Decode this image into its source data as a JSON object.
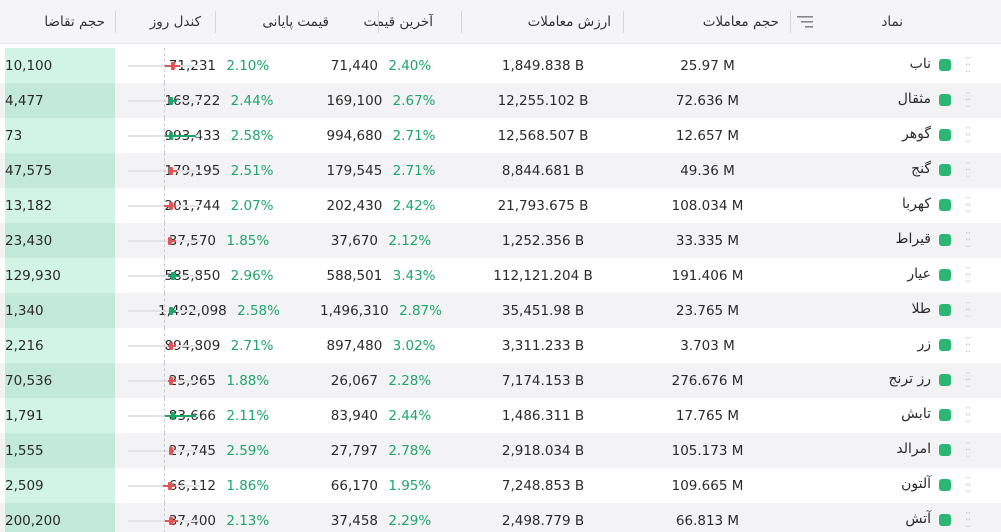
{
  "colors": {
    "positive": "#1fa56c",
    "candle_red": "#e05555",
    "candle_green": "#1fa56c",
    "symbol_square": "#2bb673",
    "bid_light": "#d2f4e6",
    "bid_dark": "#c3ead9"
  },
  "icons": {
    "sort": "sort-lines-icon",
    "grip": "drag-grip-icon"
  },
  "header": {
    "symbol": "نماد",
    "volume": "حجم معاملات",
    "value": "ارزش معاملات",
    "last_price": "آخرین قیمت",
    "close_price": "قیمت پایانی",
    "candle": "کندل روز",
    "bid_volume": "حجم تقاضا"
  },
  "rows": [
    {
      "symbol": "ناب",
      "volume": "25.97 M",
      "value": "1,849.838 B",
      "last_price": "71,440",
      "last_pct": "2.40%",
      "close_price": "71,231",
      "close_pct": "2.10%",
      "bid_volume": "10,100",
      "candle": {
        "color": "red",
        "body_pos": 0.62,
        "wick_low": 0.52,
        "wick_high": 0.72
      }
    },
    {
      "symbol": "مثقال",
      "volume": "72.636 M",
      "value": "12,255.102 B",
      "last_price": "169,100",
      "last_pct": "2.67%",
      "close_price": "168,722",
      "close_pct": "2.44%",
      "bid_volume": "4,477",
      "candle": {
        "color": "green",
        "body_pos": 0.6,
        "wick_low": 0.55,
        "wick_high": 0.68
      }
    },
    {
      "symbol": "گوهر",
      "volume": "12.657 M",
      "value": "12,568.507 B",
      "last_price": "994,680",
      "last_pct": "2.71%",
      "close_price": "993,433",
      "close_pct": "2.58%",
      "bid_volume": "73",
      "candle": {
        "color": "green",
        "body_pos": 0.6,
        "wick_low": 0.52,
        "wick_high": 0.95
      }
    },
    {
      "symbol": "گنج",
      "volume": "49.36 M",
      "value": "8,844.681 B",
      "last_price": "179,545",
      "last_pct": "2.71%",
      "close_price": "179,195",
      "close_pct": "2.51%",
      "bid_volume": "47,575",
      "candle": {
        "color": "red",
        "body_pos": 0.6,
        "wick_low": 0.55,
        "wick_high": 0.68
      }
    },
    {
      "symbol": "کهربا",
      "volume": "108.034 M",
      "value": "21,793.675 B",
      "last_price": "202,430",
      "last_pct": "2.42%",
      "close_price": "201,744",
      "close_pct": "2.07%",
      "bid_volume": "13,182",
      "candle": {
        "color": "red",
        "body_pos": 0.6,
        "wick_low": 0.5,
        "wick_high": 0.66
      }
    },
    {
      "symbol": "قیراط",
      "volume": "33.335 M",
      "value": "1,252.356 B",
      "last_price": "37,670",
      "last_pct": "2.12%",
      "close_price": "37,570",
      "close_pct": "1.85%",
      "bid_volume": "23,430",
      "candle": {
        "color": "red",
        "body_pos": 0.58,
        "wick_low": 0.55,
        "wick_high": 0.66
      }
    },
    {
      "symbol": "عیار",
      "volume": "191.406 M",
      "value": "112,121.204 B",
      "last_price": "588,501",
      "last_pct": "3.43%",
      "close_price": "585,850",
      "close_pct": "2.96%",
      "bid_volume": "129,930",
      "candle": {
        "color": "green",
        "body_pos": 0.62,
        "wick_low": 0.55,
        "wick_high": 0.72
      }
    },
    {
      "symbol": "طلا",
      "volume": "23.765 M",
      "value": "35,451.98 B",
      "last_price": "1,496,310",
      "last_pct": "2.87%",
      "close_price": "1,492,098",
      "close_pct": "2.58%",
      "bid_volume": "1,340",
      "candle": {
        "color": "green",
        "body_pos": 0.6,
        "wick_low": 0.58,
        "wick_high": 0.66
      }
    },
    {
      "symbol": "زر",
      "volume": "3.703 M",
      "value": "3,311.233 B",
      "last_price": "897,480",
      "last_pct": "3.02%",
      "close_price": "894,809",
      "close_pct": "2.71%",
      "bid_volume": "2,216",
      "candle": {
        "color": "red",
        "body_pos": 0.6,
        "wick_low": 0.55,
        "wick_high": 0.66
      }
    },
    {
      "symbol": "رز ترنج",
      "volume": "276.676 M",
      "value": "7,174.153 B",
      "last_price": "26,067",
      "last_pct": "2.28%",
      "close_price": "25,965",
      "close_pct": "1.88%",
      "bid_volume": "70,536",
      "candle": {
        "color": "red",
        "body_pos": 0.6,
        "wick_low": 0.55,
        "wick_high": 0.66
      }
    },
    {
      "symbol": "تابش",
      "volume": "17.765 M",
      "value": "1,486.311 B",
      "last_price": "83,940",
      "last_pct": "2.44%",
      "close_price": "83,666",
      "close_pct": "2.11%",
      "bid_volume": "1,791",
      "candle": {
        "color": "green",
        "body_pos": 0.62,
        "wick_low": 0.52,
        "wick_high": 0.95
      }
    },
    {
      "symbol": "امرالد",
      "volume": "105.173 M",
      "value": "2,918.034 B",
      "last_price": "27,797",
      "last_pct": "2.78%",
      "close_price": "27,745",
      "close_pct": "2.59%",
      "bid_volume": "1,555",
      "candle": {
        "color": "red",
        "body_pos": 0.6,
        "wick_low": 0.57,
        "wick_high": 0.64
      }
    },
    {
      "symbol": "آلتون",
      "volume": "109.665 M",
      "value": "7,248.853 B",
      "last_price": "66,170",
      "last_pct": "1.95%",
      "close_price": "66,112",
      "close_pct": "1.86%",
      "bid_volume": "2,509",
      "candle": {
        "color": "red",
        "body_pos": 0.58,
        "wick_low": 0.48,
        "wick_high": 0.66
      }
    },
    {
      "symbol": "آتش",
      "volume": "66.813 M",
      "value": "2,498.779 B",
      "last_price": "37,458",
      "last_pct": "2.29%",
      "close_price": "37,400",
      "close_pct": "2.13%",
      "bid_volume": "200,200",
      "candle": {
        "color": "red",
        "body_pos": 0.6,
        "wick_low": 0.52,
        "wick_high": 0.7
      }
    }
  ]
}
